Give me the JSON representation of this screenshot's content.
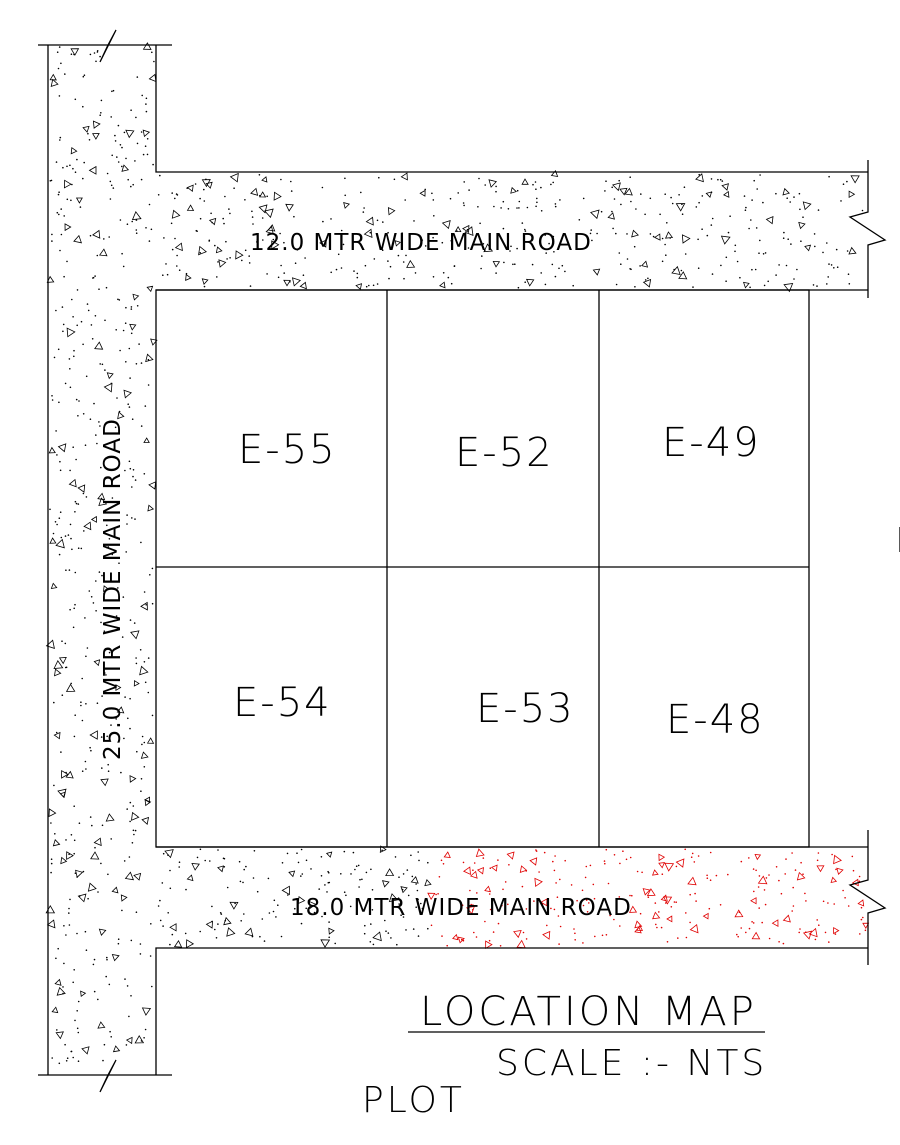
{
  "roads": {
    "north": "12.0 MTR WIDE MAIN ROAD",
    "west": "25.0 MTR WIDE MAIN ROAD",
    "south": "18.0 MTR WIDE MAIN ROAD"
  },
  "plots": [
    "E-55",
    "E-52",
    "E-49",
    "E-54",
    "E-53",
    "E-48"
  ],
  "title": "LOCATION MAP",
  "scale": "SCALE :- NTS",
  "plot_caption": "PLOT",
  "colors": {
    "lines": "#000000",
    "hatch": "#000000",
    "hatch_highlight": "#e00000",
    "background": "#ffffff"
  }
}
